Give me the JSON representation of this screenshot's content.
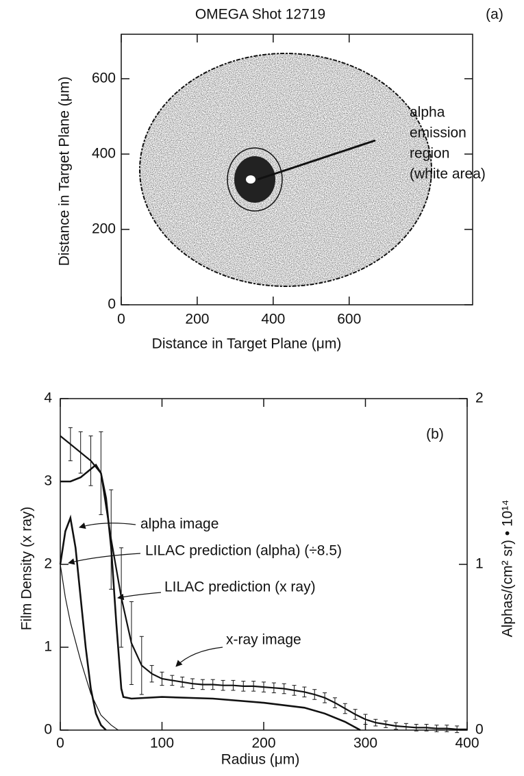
{
  "chart_data": [
    {
      "type": "image",
      "title": "OMEGA Shot 12719",
      "panel_label": "(a)",
      "xlabel": "Distance in Target Plane (μm)",
      "ylabel": "Distance in Target Plane (μm)",
      "annotation": [
        "alpha",
        "emission",
        "region",
        "(white area)"
      ],
      "xlim": [
        0,
        925
      ],
      "ylim": [
        0,
        718
      ],
      "xticks": [
        0,
        200,
        400,
        600
      ],
      "yticks": [
        0,
        200,
        400,
        600
      ]
    },
    {
      "type": "line",
      "panel_label": "(b)",
      "xlabel": "Radius (μm)",
      "ylabel": "Film Density (x ray)",
      "y2label": "Alphas/(cm² sr) • 10¹⁴",
      "xlim": [
        0,
        400
      ],
      "ylim": [
        0,
        4
      ],
      "y2lim": [
        0,
        2
      ],
      "xticks": [
        0,
        100,
        200,
        300,
        400
      ],
      "yticks": [
        0,
        1,
        2,
        3,
        4
      ],
      "y2ticks": [
        0,
        1,
        2
      ],
      "series": [
        {
          "name": "x-ray image",
          "color": "#111111",
          "x": [
            0,
            10,
            20,
            30,
            40,
            50,
            60,
            70,
            80,
            90,
            100,
            110,
            120,
            130,
            140,
            150,
            160,
            170,
            180,
            190,
            200,
            210,
            220,
            230,
            240,
            250,
            260,
            270,
            280,
            290,
            300,
            310,
            320,
            330,
            340,
            350,
            360,
            370,
            380,
            390,
            400
          ],
          "values": [
            3.55,
            3.45,
            3.35,
            3.25,
            3.1,
            2.3,
            1.6,
            1.05,
            0.78,
            0.68,
            0.62,
            0.6,
            0.58,
            0.56,
            0.55,
            0.55,
            0.54,
            0.54,
            0.53,
            0.53,
            0.52,
            0.51,
            0.5,
            0.48,
            0.46,
            0.43,
            0.39,
            0.33,
            0.26,
            0.19,
            0.13,
            0.09,
            0.07,
            0.05,
            0.04,
            0.03,
            0.03,
            0.02,
            0.02,
            0.01,
            0.01
          ],
          "errors": [
            null,
            0.2,
            0.25,
            0.3,
            0.5,
            0.6,
            0.6,
            0.5,
            0.35,
            0.1,
            0.08,
            0.06,
            0.06,
            0.06,
            0.06,
            0.06,
            0.06,
            0.06,
            0.06,
            0.06,
            0.06,
            0.06,
            0.06,
            0.06,
            0.06,
            0.06,
            0.06,
            0.06,
            0.06,
            0.06,
            0.06,
            0.04,
            0.04,
            0.04,
            0.04,
            0.04,
            0.04,
            0.04,
            0.04,
            0.04,
            null
          ]
        },
        {
          "name": "alpha image",
          "color": "#111111",
          "axis": "y2",
          "x": [
            0,
            5,
            10,
            15,
            20,
            25,
            30,
            35,
            40,
            45
          ],
          "values": [
            1.0,
            1.2,
            1.28,
            1.1,
            0.8,
            0.5,
            0.25,
            0.1,
            0.03,
            0
          ]
        },
        {
          "name": "LILAC prediction (alpha) (÷8.5)",
          "color": "#111111",
          "axis": "y2",
          "x": [
            0,
            5,
            10,
            20,
            30,
            40,
            50,
            57
          ],
          "values": [
            1.0,
            0.8,
            0.65,
            0.42,
            0.22,
            0.09,
            0.03,
            0
          ]
        },
        {
          "name": "LILAC prediction (x ray)",
          "color": "#111111",
          "x": [
            0,
            10,
            20,
            30,
            35,
            40,
            45,
            50,
            55,
            60,
            62,
            70,
            100,
            150,
            200,
            240,
            260,
            280,
            295
          ],
          "values": [
            3.0,
            3.0,
            3.05,
            3.15,
            3.2,
            3.1,
            2.8,
            2.2,
            1.3,
            0.5,
            0.4,
            0.38,
            0.4,
            0.38,
            0.33,
            0.27,
            0.2,
            0.1,
            0
          ]
        }
      ]
    }
  ]
}
